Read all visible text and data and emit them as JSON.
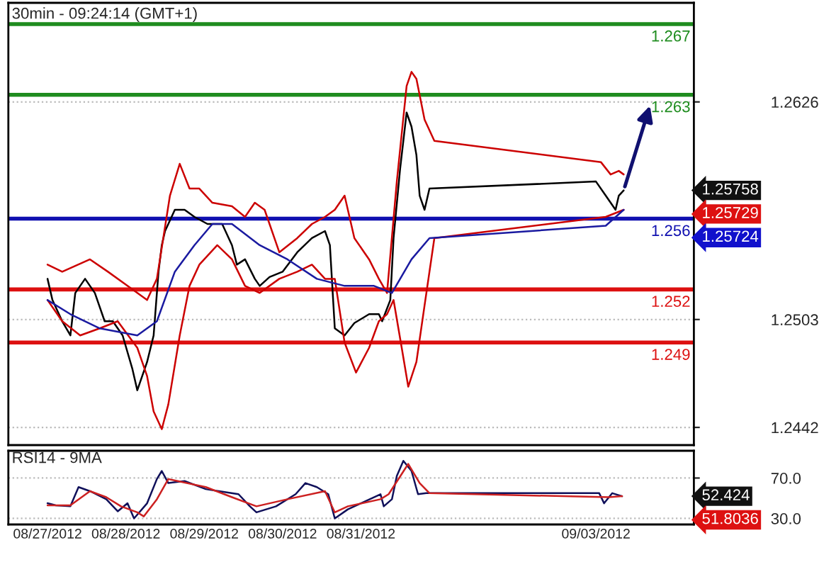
{
  "chart_data": [
    {
      "type": "line",
      "title": "30min - 09:24:14 (GMT+1)",
      "series": [
        {
          "color": "#000000",
          "x": [
            "2012-08-27T00:00",
            "2012-08-27T01:30",
            "2012-08-27T04:30",
            "2012-08-27T07:00",
            "2012-08-27T08:30",
            "2012-08-27T11:30",
            "2012-08-27T14:30",
            "2012-08-27T17:30",
            "2012-08-27T20:00",
            "2012-08-27T23:00",
            "2012-08-28T02:00",
            "2012-08-28T03:30",
            "2012-08-28T06:30",
            "2012-08-28T08:30",
            "2012-08-28T10:00",
            "2012-08-28T11:00",
            "2012-08-28T12:00",
            "2012-08-28T15:00",
            "2012-08-28T18:00",
            "2012-08-28T21:00",
            "2012-08-29T01:00",
            "2012-08-29T05:30",
            "2012-08-29T08:30",
            "2012-08-29T10:00",
            "2012-08-29T12:30",
            "2012-08-29T15:30",
            "2012-08-29T17:00",
            "2012-08-29T20:00",
            "2012-08-30T00:00",
            "2012-08-30T04:30",
            "2012-08-30T09:00",
            "2012-08-30T13:00",
            "2012-08-30T14:30",
            "2012-08-30T16:00",
            "2012-08-30T19:00",
            "2012-08-30T22:00",
            "2012-08-31T02:30",
            "2012-08-31T05:30",
            "2012-08-31T06:30",
            "2012-08-31T09:00",
            "2012-08-31T10:00",
            "2012-08-31T12:00",
            "2012-08-31T14:00",
            "2012-08-31T15:30",
            "2012-08-31T17:00",
            "2012-08-31T18:00",
            "2012-08-31T19:30",
            "2012-08-31T21:00",
            "2012-09-03T00:00",
            "2012-09-03T03:00",
            "2012-09-03T06:00",
            "2012-09-03T07:00",
            "2012-09-03T08:30"
          ],
          "values": [
            1.2526,
            1.2514,
            1.2502,
            1.2494,
            1.2518,
            1.2526,
            1.2518,
            1.2502,
            1.2502,
            1.2494,
            1.2475,
            1.2463,
            1.2479,
            1.2494,
            1.253,
            1.2545,
            1.2553,
            1.2565,
            1.2565,
            1.2561,
            1.2557,
            1.2557,
            1.2545,
            1.2534,
            1.2537,
            1.2526,
            1.2522,
            1.2527,
            1.253,
            1.2541,
            1.2549,
            1.2553,
            1.2545,
            1.2498,
            1.2494,
            1.2501,
            1.2506,
            1.2506,
            1.2502,
            1.2514,
            1.2549,
            1.2588,
            1.262,
            1.2612,
            1.2596,
            1.2573,
            1.2565,
            1.2577,
            1.2581,
            1.2573,
            1.2565,
            1.2573,
            1.2576
          ]
        },
        {
          "color": "#cc0000",
          "x": [
            "2012-08-27T00:00",
            "2012-08-27T04:30",
            "2012-08-27T13:00",
            "2012-08-27T18:30",
            "2012-08-28T00:30",
            "2012-08-28T06:30",
            "2012-08-28T09:30",
            "2012-08-28T13:30",
            "2012-08-28T16:30",
            "2012-08-28T19:30",
            "2012-08-28T22:30",
            "2012-08-29T02:30",
            "2012-08-29T08:30",
            "2012-08-29T12:30",
            "2012-08-29T15:30",
            "2012-08-29T18:30",
            "2012-08-29T23:00",
            "2012-08-30T04:30",
            "2012-08-30T09:00",
            "2012-08-30T13:00",
            "2012-08-30T16:00",
            "2012-08-30T19:00",
            "2012-08-30T22:00",
            "2012-08-31T02:30",
            "2012-08-31T05:30",
            "2012-08-31T08:00",
            "2012-08-31T11:00",
            "2012-08-31T14:00",
            "2012-08-31T15:30",
            "2012-08-31T17:00",
            "2012-08-31T19:30",
            "2012-08-31T22:30",
            "2012-09-03T01:30",
            "2012-09-03T04:30",
            "2012-09-03T07:00",
            "2012-09-03T08:30"
          ],
          "values": [
            1.2534,
            1.253,
            1.2537,
            1.253,
            1.2522,
            1.2514,
            1.2526,
            1.2573,
            1.2591,
            1.2577,
            1.2577,
            1.2569,
            1.2567,
            1.2561,
            1.2569,
            1.2565,
            1.2541,
            1.2549,
            1.2557,
            1.2561,
            1.2565,
            1.2573,
            1.2549,
            1.2537,
            1.2526,
            1.2518,
            1.2581,
            1.2635,
            1.2643,
            1.2639,
            1.2616,
            1.2604,
            1.2592,
            1.2585,
            1.2587,
            1.2585
          ]
        },
        {
          "color": "#cc0000",
          "x": [
            "2012-08-27T00:00",
            "2012-08-27T04:30",
            "2012-08-27T10:00",
            "2012-08-27T16:00",
            "2012-08-27T21:30",
            "2012-08-28T03:30",
            "2012-08-28T06:30",
            "2012-08-28T08:30",
            "2012-08-28T11:00",
            "2012-08-28T13:00",
            "2012-08-28T16:30",
            "2012-08-28T19:30",
            "2012-08-28T22:30",
            "2012-08-29T04:00",
            "2012-08-29T08:30",
            "2012-08-29T12:30",
            "2012-08-29T17:00",
            "2012-08-29T23:00",
            "2012-08-30T04:30",
            "2012-08-30T09:00",
            "2012-08-30T13:00",
            "2012-08-30T16:00",
            "2012-08-30T19:00",
            "2012-08-30T22:30",
            "2012-08-31T02:30",
            "2012-08-31T05:30",
            "2012-08-31T08:00",
            "2012-08-31T10:00",
            "2012-08-31T12:30",
            "2012-08-31T14:30",
            "2012-08-31T17:00",
            "2012-08-31T19:30",
            "2012-08-31T22:30",
            "2012-09-03T03:00",
            "2012-09-03T08:30"
          ],
          "values": [
            1.2514,
            1.2502,
            1.2494,
            1.2498,
            1.2502,
            1.2487,
            1.2471,
            1.2451,
            1.2441,
            1.2455,
            1.2494,
            1.2522,
            1.2534,
            1.2545,
            1.2537,
            1.2522,
            1.2518,
            1.2526,
            1.253,
            1.2534,
            1.2526,
            1.2526,
            1.249,
            1.2473,
            1.2487,
            1.2502,
            1.2506,
            1.2514,
            1.2487,
            1.2465,
            1.2479,
            1.2511,
            1.2549,
            1.2561,
            1.2565
          ]
        },
        {
          "color": "#1a1aa0",
          "x": [
            "2012-08-27T00:00",
            "2012-08-27T07:00",
            "2012-08-27T16:00",
            "2012-08-28T03:30",
            "2012-08-28T09:30",
            "2012-08-28T15:00",
            "2012-08-28T21:00",
            "2012-08-29T02:30",
            "2012-08-29T08:30",
            "2012-08-29T17:00",
            "2012-08-30T01:30",
            "2012-08-30T10:30",
            "2012-08-30T19:00",
            "2012-08-31T04:00",
            "2012-08-31T09:30",
            "2012-08-31T15:30",
            "2012-08-31T21:00",
            "2012-09-03T03:00",
            "2012-09-03T08:30"
          ],
          "values": [
            1.2514,
            1.2506,
            1.2498,
            1.2494,
            1.2502,
            1.253,
            1.2545,
            1.2557,
            1.2557,
            1.2545,
            1.2537,
            1.2526,
            1.2522,
            1.2522,
            1.2518,
            1.2537,
            1.2549,
            1.2556,
            1.2565
          ]
        }
      ],
      "xlim": [
        "2012-08-26T12:00",
        "2012-09-04T06:00"
      ],
      "xticks": [
        "2012-08-27",
        "2012-08-28",
        "2012-08-29",
        "2012-08-30",
        "2012-08-31",
        "2012-09-03"
      ],
      "ylim": [
        1.2432,
        1.2682
      ],
      "yticks": [
        1.2442,
        1.2503,
        1.2626
      ],
      "tick_labels": "y",
      "grid": "y",
      "ref_lines": [
        {
          "axis": "y",
          "value": 1.267,
          "label": "1.267",
          "color": "#1e8c1e"
        },
        {
          "axis": "y",
          "value": 1.263,
          "label": "1.263",
          "color": "#1e8c1e"
        },
        {
          "axis": "y",
          "value": 1.256,
          "label": "1.256",
          "color": "#1010b0"
        },
        {
          "axis": "y",
          "value": 1.252,
          "label": "1.252",
          "color": "#dd1010"
        },
        {
          "axis": "y",
          "value": 1.249,
          "label": "1.249",
          "color": "#dd1010"
        }
      ],
      "annotations": [
        "1.25758",
        "1.25729",
        "1.25724"
      ]
    },
    {
      "type": "line",
      "title": "RSI14 - 9MA",
      "series": [
        {
          "color": "#10105a",
          "x": [
            "2012-08-27T00:00",
            "2012-08-27T02:30",
            "2012-08-27T07:00",
            "2012-08-27T09:30",
            "2012-08-27T13:00",
            "2012-08-27T18:00",
            "2012-08-27T21:30",
            "2012-08-28T00:30",
            "2012-08-28T02:30",
            "2012-08-28T06:30",
            "2012-08-28T09:30",
            "2012-08-28T11:00",
            "2012-08-28T13:00",
            "2012-08-28T18:00",
            "2012-08-29T00:30",
            "2012-08-29T04:30",
            "2012-08-29T10:30",
            "2012-08-29T14:00",
            "2012-08-29T16:00",
            "2012-08-29T22:00",
            "2012-08-30T04:00",
            "2012-08-30T07:00",
            "2012-08-30T10:30",
            "2012-08-30T14:00",
            "2012-08-30T16:00",
            "2012-08-30T20:00",
            "2012-08-31T00:00",
            "2012-08-31T06:00",
            "2012-08-31T07:00",
            "2012-08-31T09:30",
            "2012-08-31T11:00",
            "2012-08-31T13:00",
            "2012-08-31T15:30",
            "2012-08-31T17:30",
            "2012-08-31T20:00",
            "2012-09-03T01:00",
            "2012-09-03T02:30",
            "2012-09-03T05:00",
            "2012-09-03T08:00"
          ],
          "values": [
            45,
            43,
            42,
            61,
            57,
            49,
            37,
            45,
            30,
            45,
            69,
            77,
            65,
            67,
            59,
            57,
            54,
            42,
            36,
            42,
            54,
            65,
            61,
            54,
            30,
            39,
            45,
            54,
            42,
            49,
            72,
            87,
            77,
            54,
            55,
            55,
            45,
            55,
            52
          ]
        },
        {
          "color": "#cc2020",
          "x": [
            "2012-08-27T00:00",
            "2012-08-27T07:00",
            "2012-08-27T13:00",
            "2012-08-27T18:00",
            "2012-08-27T22:30",
            "2012-08-28T03:30",
            "2012-08-28T05:30",
            "2012-08-28T09:30",
            "2012-08-28T13:00",
            "2012-08-29T00:30",
            "2012-08-29T08:30",
            "2012-08-29T16:00",
            "2012-08-30T01:30",
            "2012-08-30T13:00",
            "2012-08-30T16:00",
            "2012-08-30T20:00",
            "2012-08-31T06:00",
            "2012-08-31T08:30",
            "2012-08-31T14:30",
            "2012-08-31T18:00",
            "2012-08-31T21:00",
            "2012-09-03T04:00",
            "2012-09-03T08:00"
          ],
          "values": [
            43,
            43,
            57,
            51,
            42,
            36,
            32,
            49,
            69,
            61,
            51,
            42,
            49,
            57,
            36,
            42,
            49,
            54,
            84,
            65,
            55,
            51,
            52
          ]
        }
      ],
      "xlim": [
        "2012-08-26T12:00",
        "2012-09-04T06:00"
      ],
      "xticks": [
        {
          "value": "2012-08-27",
          "label": "08/27/2012"
        },
        {
          "value": "2012-08-28",
          "label": "08/28/2012"
        },
        {
          "value": "2012-08-29",
          "label": "08/29/2012"
        },
        {
          "value": "2012-08-30",
          "label": "08/30/2012"
        },
        {
          "value": "2012-08-31",
          "label": "08/31/2012"
        },
        {
          "value": "2012-09-03",
          "label": "09/03/2012"
        }
      ],
      "ylim": [
        24,
        97
      ],
      "yticks": [
        {
          "value": 30,
          "label": "30.0"
        },
        {
          "value": 70,
          "label": "70.0"
        }
      ],
      "grid": "y",
      "annotations": [
        "52.424",
        "51.8036"
      ]
    }
  ]
}
